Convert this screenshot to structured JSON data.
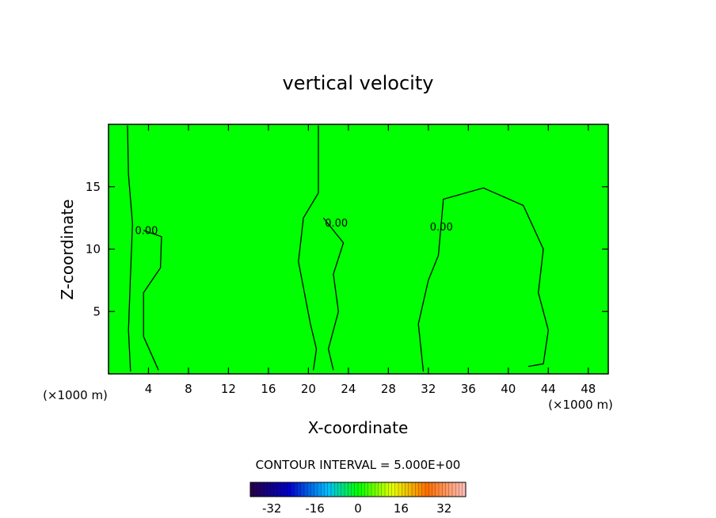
{
  "chart_data": {
    "type": "heatmap",
    "title": "vertical velocity",
    "xlabel": "X-coordinate",
    "ylabel": "Z-coordinate",
    "x_unit": "(×1000 m)",
    "xlim": [
      0,
      50
    ],
    "ylim": [
      0,
      20
    ],
    "x_ticks": [
      4,
      8,
      12,
      16,
      20,
      24,
      28,
      32,
      36,
      40,
      44,
      48
    ],
    "y_ticks": [
      5,
      10,
      15
    ],
    "background_color": "#00ff00",
    "contour_labels": [
      {
        "text": "0.00",
        "x": 3.8,
        "y": 11.2
      },
      {
        "text": "0.00",
        "x": 22.8,
        "y": 11.8
      },
      {
        "text": "0.00",
        "x": 33.3,
        "y": 11.5
      }
    ],
    "contour_lines": [
      [
        [
          2.2,
          0.2
        ],
        [
          2.0,
          3.5
        ],
        [
          2.2,
          8.0
        ],
        [
          2.4,
          12.0
        ],
        [
          2.0,
          16.0
        ],
        [
          1.9,
          19.9
        ]
      ],
      [
        [
          5.0,
          0.3
        ],
        [
          3.5,
          3.0
        ],
        [
          3.5,
          6.5
        ],
        [
          5.2,
          8.5
        ],
        [
          5.3,
          11.0
        ],
        [
          3.5,
          11.5
        ]
      ],
      [
        [
          20.5,
          0.3
        ],
        [
          20.8,
          2.0
        ],
        [
          20.2,
          4.0
        ],
        [
          19.0,
          9.0
        ],
        [
          19.5,
          12.5
        ],
        [
          21.0,
          14.5
        ],
        [
          21.0,
          19.9
        ]
      ],
      [
        [
          22.5,
          0.3
        ],
        [
          22.0,
          2.0
        ],
        [
          23.0,
          5.0
        ],
        [
          22.5,
          8.0
        ],
        [
          23.5,
          10.5
        ],
        [
          21.5,
          12.5
        ]
      ],
      [
        [
          31.5,
          0.2
        ],
        [
          31.0,
          4.0
        ],
        [
          32.0,
          7.5
        ],
        [
          33.0,
          9.5
        ],
        [
          33.5,
          14.0
        ],
        [
          37.5,
          14.9
        ],
        [
          41.5,
          13.5
        ],
        [
          43.5,
          10.0
        ],
        [
          43.0,
          6.5
        ],
        [
          44.0,
          3.5
        ],
        [
          43.5,
          0.8
        ],
        [
          42.0,
          0.6
        ]
      ]
    ],
    "colorbar": {
      "title": "CONTOUR INTERVAL = 5.000E+00",
      "ticks": [
        "-32",
        "-16",
        "0",
        "16",
        "32"
      ],
      "range": [
        -40,
        40
      ]
    }
  }
}
